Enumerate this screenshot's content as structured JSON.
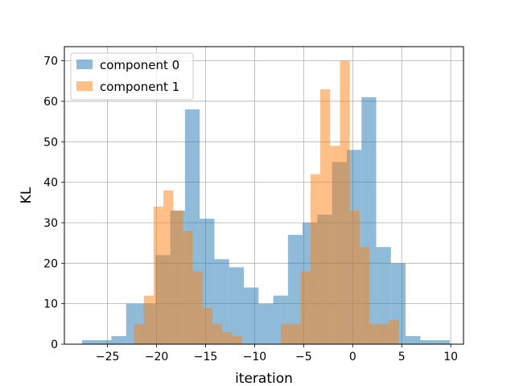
{
  "chart_data": {
    "type": "bar",
    "title": "",
    "xlabel": "iteration",
    "ylabel": "KL",
    "xlim": [
      -29.4,
      11.3
    ],
    "ylim": [
      0,
      73.5
    ],
    "xticks": [
      -25,
      -20,
      -15,
      -10,
      -5,
      0,
      5,
      10
    ],
    "xtick_labels": [
      "−25",
      "−20",
      "−15",
      "−10",
      "−5",
      "0",
      "5",
      "10"
    ],
    "yticks": [
      0,
      10,
      20,
      30,
      40,
      50,
      60,
      70
    ],
    "ytick_labels": [
      "0",
      "10",
      "20",
      "30",
      "40",
      "50",
      "60",
      "70"
    ],
    "grid": true,
    "legend_position": "top-left",
    "series": [
      {
        "name": "component 0",
        "color": "#1f77b4",
        "alpha": 0.5,
        "bin_edges": [
          -27.6,
          -26.1,
          -24.6,
          -23.1,
          -21.6,
          -20.1,
          -18.6,
          -17.1,
          -15.6,
          -14.1,
          -12.6,
          -11.1,
          -9.6,
          -8.1,
          -6.6,
          -5.1,
          -3.6,
          -2.1,
          -0.6,
          0.9,
          2.4,
          3.9,
          5.4,
          6.9,
          8.4,
          9.9
        ],
        "values": [
          1,
          1,
          2,
          10,
          10,
          22,
          33,
          58,
          31,
          21,
          19,
          14,
          10,
          12,
          27,
          30,
          32,
          45,
          48,
          61,
          24,
          20,
          2,
          1,
          1
        ]
      },
      {
        "name": "component 1",
        "color": "#ff7f0e",
        "alpha": 0.5,
        "bin_edges": [
          -22.3,
          -21.3,
          -20.3,
          -19.3,
          -18.3,
          -17.3,
          -16.3,
          -15.3,
          -14.3,
          -13.3,
          -12.3,
          -11.3,
          -10.3,
          -9.3,
          -8.3,
          -7.3,
          -6.3,
          -5.3,
          -4.3,
          -3.3,
          -2.3,
          -1.3,
          -0.3,
          0.7,
          1.7,
          2.7,
          3.7,
          4.7,
          5.7
        ],
        "values": [
          5,
          12,
          34,
          38,
          33,
          28,
          18,
          9,
          5,
          3,
          2,
          0,
          0,
          0,
          0,
          5,
          5,
          18,
          42,
          63,
          49,
          70,
          33,
          24,
          5,
          5,
          6,
          0
        ]
      }
    ]
  }
}
